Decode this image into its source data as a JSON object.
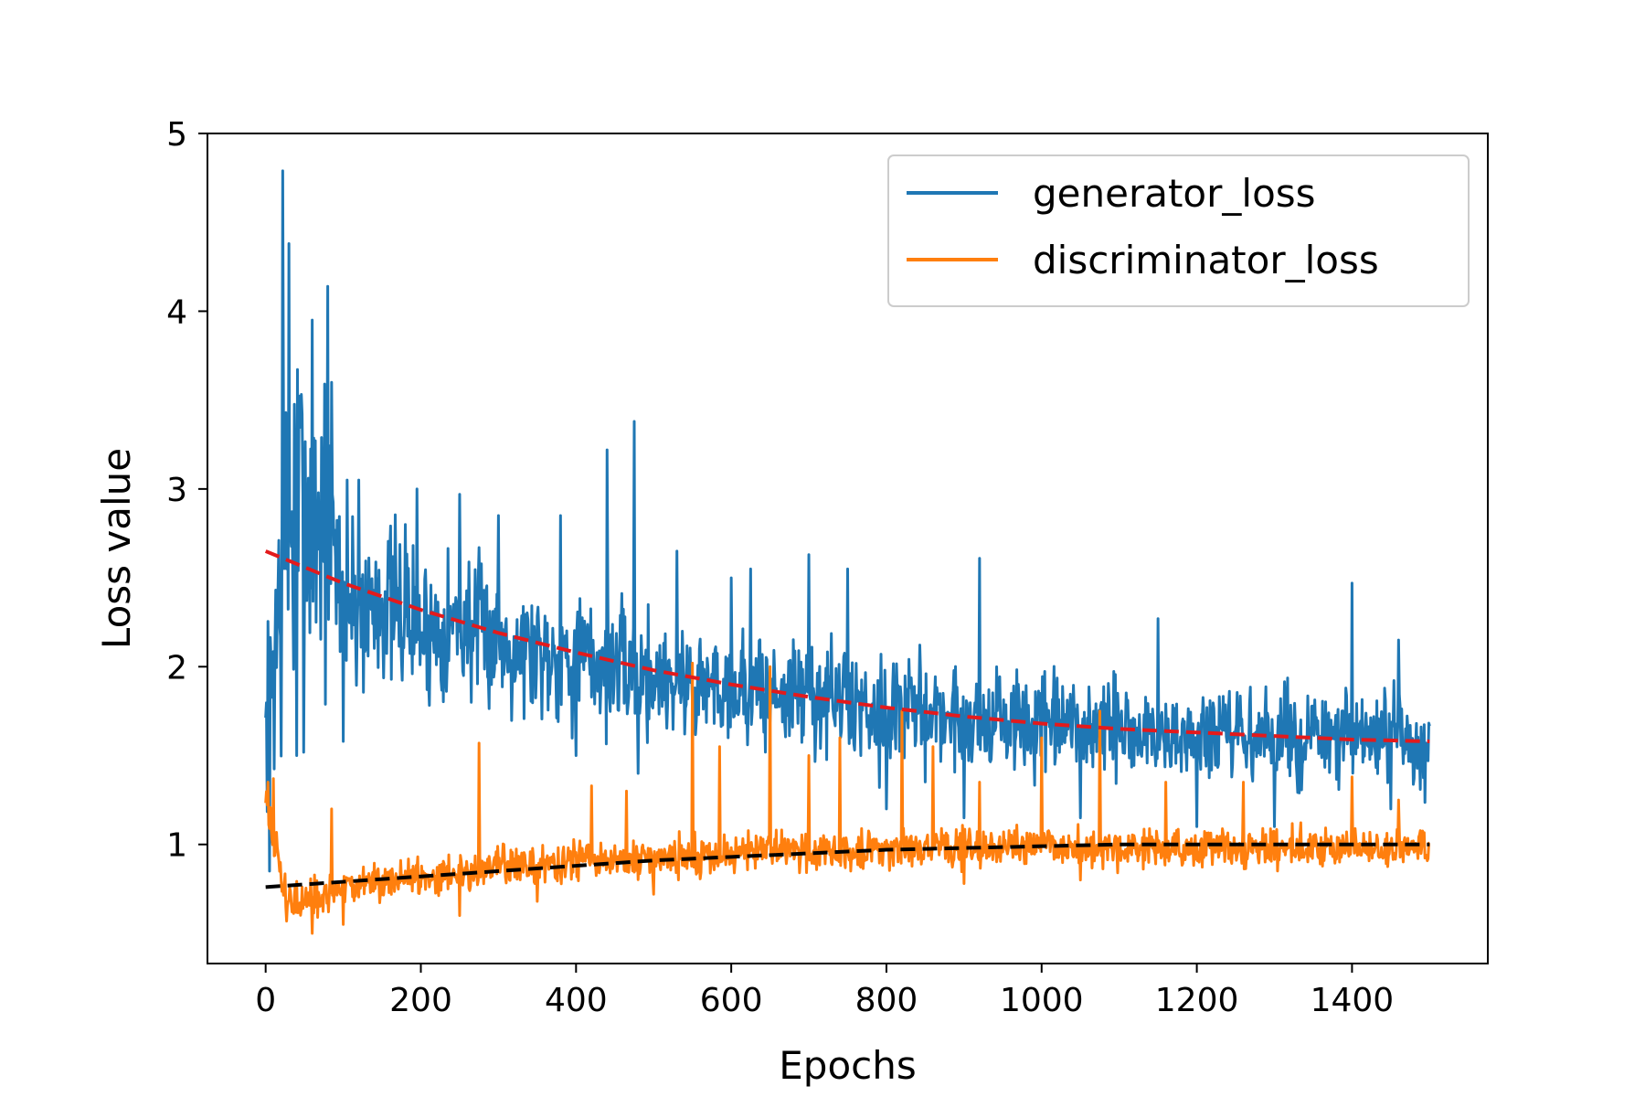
{
  "chart_data": {
    "type": "line",
    "title": "",
    "xlabel": "Epochs",
    "ylabel": "Loss value",
    "xlim": [
      -75,
      1575
    ],
    "ylim": [
      0.33,
      5.0
    ],
    "xticks": [
      0,
      200,
      400,
      600,
      800,
      1000,
      1200,
      1400
    ],
    "yticks": [
      1,
      2,
      3,
      4,
      5
    ],
    "grid": false,
    "legend": {
      "position": "top-right"
    },
    "colors": {
      "generator_loss": "#1f77b4",
      "discriminator_loss": "#ff7f0e",
      "generator_trend": "#e31a1c",
      "discriminator_trend": "#000000"
    },
    "series": [
      {
        "name": "generator_loss",
        "x": [
          0,
          25,
          50,
          75,
          100,
          125,
          150,
          175,
          200,
          250,
          300,
          350,
          400,
          450,
          500,
          550,
          600,
          650,
          700,
          750,
          800,
          850,
          900,
          950,
          1000,
          1050,
          1100,
          1150,
          1200,
          1250,
          1300,
          1350,
          1400,
          1450,
          1500
        ],
        "values": [
          1.6,
          2.7,
          2.9,
          2.8,
          2.4,
          2.3,
          2.4,
          2.3,
          2.2,
          2.25,
          2.15,
          2.1,
          2.05,
          2.0,
          1.95,
          1.9,
          1.9,
          1.85,
          1.85,
          1.8,
          1.75,
          1.75,
          1.7,
          1.7,
          1.65,
          1.65,
          1.65,
          1.6,
          1.6,
          1.6,
          1.6,
          1.6,
          1.58,
          1.6,
          1.55
        ],
        "spread": [
          0.4,
          1.2,
          1.0,
          0.8,
          0.5,
          0.45,
          0.45,
          0.4,
          0.4,
          0.38,
          0.35,
          0.35,
          0.35,
          0.33,
          0.32,
          0.3,
          0.3,
          0.3,
          0.3,
          0.3,
          0.3,
          0.28,
          0.28,
          0.28,
          0.27,
          0.26,
          0.26,
          0.25,
          0.25,
          0.25,
          0.25,
          0.25,
          0.25,
          0.25,
          0.25
        ],
        "peaks": [
          [
            22,
            4.79
          ],
          [
            30,
            4.38
          ],
          [
            60,
            3.95
          ],
          [
            80,
            4.14
          ],
          [
            85,
            3.6
          ],
          [
            105,
            3.05
          ],
          [
            120,
            3.05
          ],
          [
            180,
            2.8
          ],
          [
            195,
            3.0
          ],
          [
            250,
            2.97
          ],
          [
            300,
            2.85
          ],
          [
            380,
            2.85
          ],
          [
            440,
            3.22
          ],
          [
            475,
            3.38
          ],
          [
            530,
            2.65
          ],
          [
            600,
            2.5
          ],
          [
            625,
            2.55
          ],
          [
            700,
            2.63
          ],
          [
            750,
            2.55
          ],
          [
            920,
            2.61
          ],
          [
            1150,
            2.27
          ],
          [
            1400,
            2.47
          ],
          [
            1460,
            2.15
          ]
        ],
        "troughs": [
          [
            5,
            0.85
          ],
          [
            40,
            1.5
          ],
          [
            60,
            1.31
          ],
          [
            100,
            1.58
          ],
          [
            250,
            1.6
          ],
          [
            400,
            1.5
          ],
          [
            480,
            1.4
          ],
          [
            600,
            1.3
          ],
          [
            700,
            1.25
          ],
          [
            800,
            1.2
          ],
          [
            900,
            1.15
          ],
          [
            1050,
            1.15
          ],
          [
            1150,
            1.05
          ],
          [
            1200,
            1.1
          ],
          [
            1300,
            1.1
          ],
          [
            1450,
            1.2
          ]
        ],
        "stroke_color": "#1f77b4"
      },
      {
        "name": "discriminator_loss",
        "x": [
          0,
          25,
          50,
          75,
          100,
          150,
          200,
          250,
          300,
          350,
          400,
          450,
          500,
          550,
          600,
          650,
          700,
          750,
          800,
          850,
          900,
          950,
          1000,
          1050,
          1100,
          1150,
          1200,
          1250,
          1300,
          1350,
          1400,
          1450,
          1500
        ],
        "values": [
          1.25,
          0.7,
          0.65,
          0.7,
          0.75,
          0.8,
          0.82,
          0.85,
          0.88,
          0.88,
          0.9,
          0.9,
          0.92,
          0.93,
          0.95,
          0.96,
          0.97,
          0.97,
          0.98,
          0.98,
          0.98,
          0.98,
          1.0,
          0.98,
          0.98,
          0.98,
          0.98,
          0.98,
          0.98,
          0.98,
          0.98,
          0.98,
          0.98
        ],
        "spread": [
          0.15,
          0.12,
          0.12,
          0.1,
          0.1,
          0.1,
          0.1,
          0.1,
          0.1,
          0.1,
          0.1,
          0.1,
          0.1,
          0.1,
          0.1,
          0.1,
          0.1,
          0.1,
          0.1,
          0.1,
          0.1,
          0.1,
          0.1,
          0.1,
          0.1,
          0.1,
          0.1,
          0.1,
          0.1,
          0.1,
          0.1,
          0.1,
          0.1
        ],
        "peaks": [
          [
            3,
            1.35
          ],
          [
            10,
            1.37
          ],
          [
            85,
            1.2
          ],
          [
            275,
            1.57
          ],
          [
            420,
            1.33
          ],
          [
            465,
            1.3
          ],
          [
            550,
            2.02
          ],
          [
            585,
            1.55
          ],
          [
            650,
            2.0
          ],
          [
            700,
            1.5
          ],
          [
            740,
            1.6
          ],
          [
            820,
            1.75
          ],
          [
            860,
            1.55
          ],
          [
            920,
            1.35
          ],
          [
            1000,
            1.6
          ],
          [
            1075,
            1.75
          ],
          [
            1160,
            1.35
          ],
          [
            1260,
            1.35
          ],
          [
            1400,
            1.38
          ],
          [
            1460,
            1.25
          ]
        ],
        "troughs": [
          [
            60,
            0.5
          ],
          [
            100,
            0.55
          ],
          [
            250,
            0.6
          ],
          [
            350,
            0.68
          ],
          [
            500,
            0.72
          ],
          [
            700,
            0.8
          ],
          [
            900,
            0.78
          ],
          [
            1050,
            0.8
          ]
        ],
        "stroke_color": "#ff7f0e"
      },
      {
        "x": [
          0,
          100,
          200,
          300,
          400,
          500,
          600,
          700,
          800,
          900,
          1000,
          1100,
          1200,
          1300,
          1400,
          1500
        ],
        "values": [
          2.65,
          2.47,
          2.32,
          2.19,
          2.08,
          1.98,
          1.9,
          1.83,
          1.77,
          1.72,
          1.68,
          1.65,
          1.63,
          1.61,
          1.59,
          1.58
        ],
        "stroke_color": "#e31a1c",
        "dashed": true
      },
      {
        "x": [
          0,
          100,
          200,
          300,
          400,
          500,
          600,
          700,
          800,
          900,
          1000,
          1100,
          1200,
          1300,
          1400,
          1500
        ],
        "values": [
          0.76,
          0.79,
          0.82,
          0.85,
          0.88,
          0.91,
          0.93,
          0.95,
          0.97,
          0.98,
          0.99,
          1.0,
          1.0,
          1.0,
          1.0,
          1.0
        ],
        "stroke_color": "#000000",
        "dashed": true
      }
    ]
  }
}
